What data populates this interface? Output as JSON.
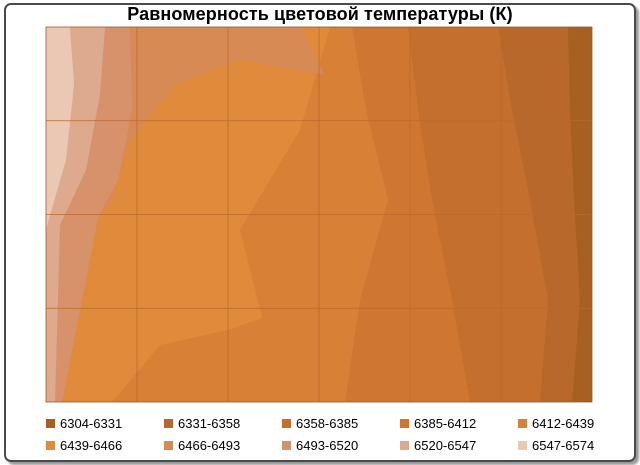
{
  "chart_data": {
    "type": "heatmap",
    "subtype": "filled-contour",
    "title": "Равномерность цветовой температуры (К)",
    "xlabel": "",
    "ylabel": "",
    "grid": true,
    "legend_position": "bottom",
    "grid_columns": 6,
    "grid_rows": 4,
    "levels": [
      {
        "label": "6304-6331",
        "min": 6304,
        "max": 6331,
        "color": "#a85f22"
      },
      {
        "label": "6331-6358",
        "min": 6331,
        "max": 6358,
        "color": "#b8682a"
      },
      {
        "label": "6358-6385",
        "min": 6358,
        "max": 6385,
        "color": "#c46f2d"
      },
      {
        "label": "6385-6412",
        "min": 6385,
        "max": 6412,
        "color": "#cf7731"
      },
      {
        "label": "6412-6439",
        "min": 6412,
        "max": 6439,
        "color": "#d88035"
      },
      {
        "label": "6439-6466",
        "min": 6439,
        "max": 6466,
        "color": "#e08a3c"
      },
      {
        "label": "6466-6493",
        "min": 6466,
        "max": 6493,
        "color": "#d88a55"
      },
      {
        "label": "6493-6520",
        "min": 6493,
        "max": 6520,
        "color": "#d8926b"
      },
      {
        "label": "6520-6547",
        "min": 6520,
        "max": 6547,
        "color": "#ddaa8e"
      },
      {
        "label": "6547-6574",
        "min": 6547,
        "max": 6574,
        "color": "#ebc8b4"
      }
    ]
  }
}
